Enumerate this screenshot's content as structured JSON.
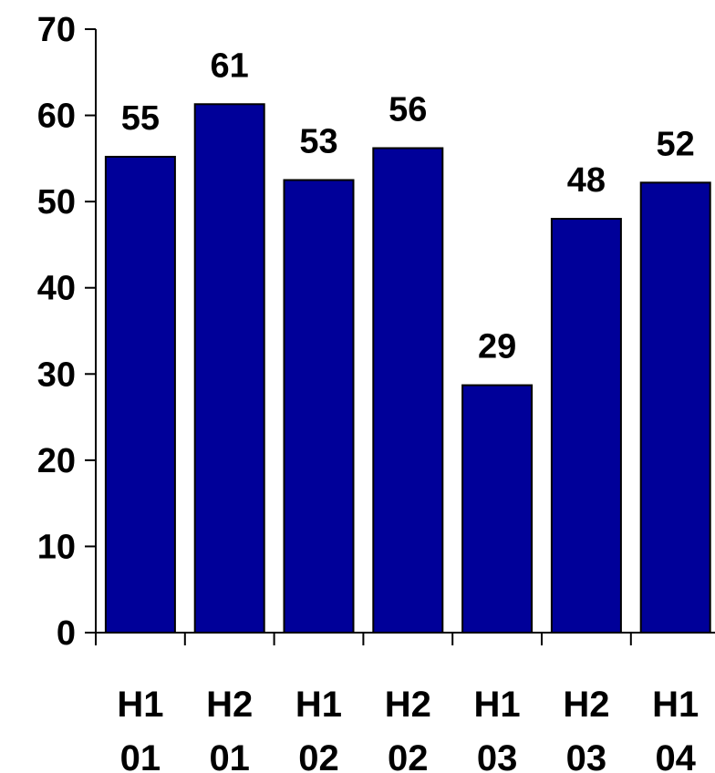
{
  "chart_data": {
    "type": "bar",
    "title": "",
    "xlabel": "",
    "ylabel": "",
    "categories": [
      [
        "H1",
        "01"
      ],
      [
        "H2",
        "01"
      ],
      [
        "H1",
        "02"
      ],
      [
        "H2",
        "02"
      ],
      [
        "H1",
        "03"
      ],
      [
        "H2",
        "03"
      ],
      [
        "H1",
        "04"
      ]
    ],
    "values": [
      55,
      61,
      53,
      56,
      29,
      48,
      52
    ],
    "data_labels": [
      "55",
      "61",
      "53",
      "56",
      "29",
      "48",
      "52"
    ],
    "plotted_values": [
      55.2,
      61.3,
      52.5,
      56.2,
      28.7,
      48.0,
      52.2
    ],
    "yticks": [
      "0",
      "10",
      "20",
      "30",
      "40",
      "50",
      "60",
      "70"
    ],
    "ylim": [
      0,
      70
    ],
    "grid": false,
    "legend": "none",
    "bar_color": "#000099"
  }
}
